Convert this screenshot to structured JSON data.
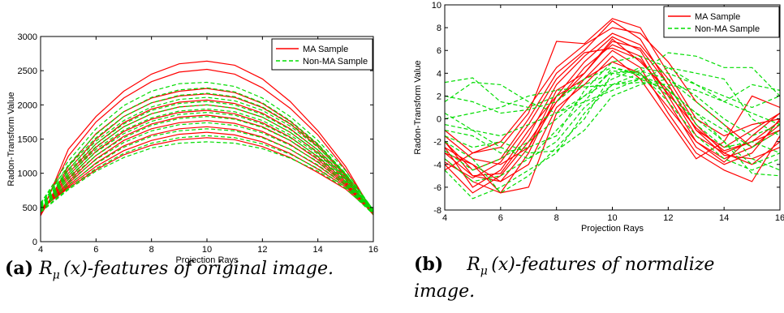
{
  "chart_data": [
    {
      "id": "a",
      "type": "line",
      "xlabel": "Projection Rays",
      "ylabel": "Radon-Transform Value",
      "xlim": [
        4,
        16
      ],
      "ylim": [
        0,
        3000
      ],
      "xticks": [
        4,
        6,
        8,
        10,
        12,
        14,
        16
      ],
      "yticks": [
        0,
        500,
        1000,
        1500,
        2000,
        2500,
        3000
      ],
      "legend": {
        "placement": "top-right",
        "entries": [
          {
            "label": "MA Sample",
            "color": "#ff0000",
            "dash": "solid"
          },
          {
            "label": "Non-MA Sample",
            "color": "#00dd00",
            "dash": "dashed"
          }
        ]
      },
      "x": [
        4,
        5,
        6,
        7,
        8,
        9,
        10,
        11,
        12,
        13,
        14,
        15,
        16
      ],
      "series": [
        {
          "group": "MA Sample",
          "values": [
            380,
            1350,
            1830,
            2200,
            2450,
            2600,
            2640,
            2580,
            2380,
            2050,
            1620,
            1100,
            420
          ]
        },
        {
          "group": "MA Sample",
          "values": [
            420,
            1250,
            1750,
            2100,
            2340,
            2480,
            2520,
            2450,
            2250,
            1950,
            1560,
            1050,
            430
          ]
        },
        {
          "group": "MA Sample",
          "values": [
            380,
            1100,
            1580,
            1900,
            2100,
            2200,
            2240,
            2180,
            2020,
            1760,
            1420,
            980,
            400
          ]
        },
        {
          "group": "MA Sample",
          "values": [
            400,
            1050,
            1500,
            1830,
            2030,
            2130,
            2160,
            2110,
            1960,
            1720,
            1390,
            960,
            410
          ]
        },
        {
          "group": "MA Sample",
          "values": [
            410,
            1000,
            1430,
            1740,
            1940,
            2040,
            2070,
            2020,
            1880,
            1650,
            1340,
            930,
            400
          ]
        },
        {
          "group": "MA Sample",
          "values": [
            420,
            960,
            1380,
            1680,
            1870,
            1970,
            2000,
            1950,
            1820,
            1600,
            1300,
            910,
            400
          ]
        },
        {
          "group": "MA Sample",
          "values": [
            430,
            920,
            1320,
            1610,
            1790,
            1890,
            1920,
            1870,
            1740,
            1530,
            1240,
            880,
            390
          ]
        },
        {
          "group": "MA Sample",
          "values": [
            440,
            880,
            1260,
            1540,
            1720,
            1820,
            1850,
            1800,
            1680,
            1480,
            1200,
            860,
            400
          ]
        },
        {
          "group": "MA Sample",
          "values": [
            450,
            850,
            1210,
            1480,
            1650,
            1740,
            1770,
            1730,
            1610,
            1420,
            1160,
            840,
            410
          ]
        },
        {
          "group": "MA Sample",
          "values": [
            460,
            820,
            1150,
            1400,
            1560,
            1650,
            1680,
            1640,
            1530,
            1350,
            1110,
            820,
            420
          ]
        },
        {
          "group": "MA Sample",
          "values": [
            470,
            800,
            1100,
            1330,
            1480,
            1570,
            1600,
            1560,
            1460,
            1290,
            1060,
            800,
            430
          ]
        },
        {
          "group": "MA Sample",
          "values": [
            480,
            780,
            1050,
            1270,
            1410,
            1490,
            1520,
            1490,
            1390,
            1230,
            1010,
            770,
            420
          ]
        },
        {
          "group": "Non-MA Sample",
          "values": [
            560,
            1180,
            1650,
            1990,
            2200,
            2310,
            2330,
            2270,
            2100,
            1830,
            1480,
            1040,
            460
          ]
        },
        {
          "group": "Non-MA Sample",
          "values": [
            520,
            1120,
            1570,
            1900,
            2110,
            2220,
            2250,
            2190,
            2030,
            1770,
            1430,
            1000,
            450
          ]
        },
        {
          "group": "Non-MA Sample",
          "values": [
            560,
            1100,
            1520,
            1830,
            2030,
            2140,
            2170,
            2120,
            1970,
            1730,
            1410,
            990,
            470
          ]
        },
        {
          "group": "Non-MA Sample",
          "values": [
            540,
            1060,
            1470,
            1770,
            1970,
            2080,
            2110,
            2060,
            1920,
            1690,
            1380,
            980,
            460
          ]
        },
        {
          "group": "Non-MA Sample",
          "values": [
            520,
            1030,
            1430,
            1720,
            1920,
            2020,
            2050,
            2000,
            1860,
            1640,
            1340,
            950,
            450
          ]
        },
        {
          "group": "Non-MA Sample",
          "values": [
            510,
            1000,
            1390,
            1680,
            1870,
            1970,
            2000,
            1950,
            1820,
            1600,
            1310,
            940,
            440
          ]
        },
        {
          "group": "Non-MA Sample",
          "values": [
            500,
            970,
            1350,
            1630,
            1810,
            1910,
            1940,
            1900,
            1770,
            1560,
            1280,
            920,
            440
          ]
        },
        {
          "group": "Non-MA Sample",
          "values": [
            490,
            940,
            1310,
            1580,
            1760,
            1860,
            1890,
            1850,
            1720,
            1520,
            1250,
            900,
            430
          ]
        },
        {
          "group": "Non-MA Sample",
          "values": [
            480,
            910,
            1260,
            1520,
            1700,
            1800,
            1830,
            1790,
            1670,
            1480,
            1220,
            880,
            430
          ]
        },
        {
          "group": "Non-MA Sample",
          "values": [
            470,
            870,
            1200,
            1450,
            1620,
            1710,
            1740,
            1700,
            1590,
            1410,
            1170,
            860,
            420
          ]
        },
        {
          "group": "Non-MA Sample",
          "values": [
            460,
            830,
            1140,
            1380,
            1540,
            1620,
            1650,
            1620,
            1520,
            1350,
            1120,
            830,
            420
          ]
        },
        {
          "group": "Non-MA Sample",
          "values": [
            440,
            780,
            1070,
            1290,
            1440,
            1520,
            1550,
            1520,
            1430,
            1280,
            1070,
            800,
            410
          ]
        },
        {
          "group": "Non-MA Sample",
          "values": [
            430,
            760,
            1030,
            1230,
            1370,
            1440,
            1460,
            1440,
            1360,
            1220,
            1030,
            780,
            400
          ]
        }
      ]
    },
    {
      "id": "b",
      "type": "line",
      "xlabel": "Projection Rays",
      "ylabel": "Radon-Transform Value",
      "xlim": [
        4,
        16
      ],
      "ylim": [
        -8,
        10
      ],
      "xticks": [
        4,
        6,
        8,
        10,
        12,
        14,
        16
      ],
      "yticks": [
        -8,
        -6,
        -4,
        -2,
        0,
        2,
        4,
        6,
        8,
        10
      ],
      "legend": {
        "placement": "top-right",
        "entries": [
          {
            "label": "MA Sample",
            "color": "#ff0000",
            "dash": "solid"
          },
          {
            "label": "Non-MA Sample",
            "color": "#00dd00",
            "dash": "dashed"
          }
        ]
      },
      "x": [
        4,
        5,
        6,
        7,
        8,
        9,
        10,
        11,
        12,
        13,
        14,
        15,
        16
      ],
      "series": [
        {
          "group": "MA Sample",
          "values": [
            -1.0,
            -3.0,
            -2.5,
            0.5,
            6.8,
            6.6,
            8.8,
            8.0,
            4.0,
            0.0,
            -1.5,
            -0.5,
            0.0
          ]
        },
        {
          "group": "MA Sample",
          "values": [
            -2.0,
            -4.5,
            -3.5,
            0.0,
            4.0,
            6.0,
            8.6,
            7.0,
            3.0,
            -1.0,
            -2.5,
            -1.0,
            0.5
          ]
        },
        {
          "group": "MA Sample",
          "values": [
            -3.0,
            -5.0,
            -4.8,
            -1.5,
            3.0,
            5.5,
            7.5,
            6.5,
            3.5,
            -0.5,
            -3.0,
            -2.0,
            -1.0
          ]
        },
        {
          "group": "MA Sample",
          "values": [
            -3.5,
            -5.5,
            -6.5,
            -3.0,
            2.0,
            5.0,
            7.2,
            6.0,
            2.0,
            -2.0,
            -3.5,
            -2.5,
            -0.5
          ]
        },
        {
          "group": "MA Sample",
          "values": [
            -4.0,
            -6.5,
            -5.0,
            -2.0,
            1.5,
            4.5,
            6.5,
            5.5,
            1.5,
            -2.5,
            -4.0,
            -3.0,
            0.0
          ]
        },
        {
          "group": "MA Sample",
          "values": [
            -2.5,
            -4.0,
            -6.5,
            -6.0,
            0.5,
            3.5,
            6.0,
            4.5,
            0.5,
            -3.0,
            -4.5,
            -5.5,
            -1.5
          ]
        },
        {
          "group": "MA Sample",
          "values": [
            -1.5,
            -3.5,
            -4.0,
            -2.5,
            2.5,
            4.0,
            7.0,
            5.0,
            2.5,
            -1.5,
            -3.0,
            -4.0,
            -2.0
          ]
        },
        {
          "group": "MA Sample",
          "values": [
            -2.0,
            -5.0,
            -5.5,
            -4.0,
            1.0,
            3.0,
            5.5,
            3.5,
            0.0,
            -3.5,
            -2.0,
            2.0,
            1.0
          ]
        },
        {
          "group": "MA Sample",
          "values": [
            -4.5,
            -3.0,
            -2.0,
            1.0,
            4.5,
            6.5,
            8.0,
            7.5,
            5.0,
            1.5,
            -0.5,
            -2.5,
            -1.0
          ]
        },
        {
          "group": "MA Sample",
          "values": [
            -3.0,
            -4.0,
            -5.5,
            -2.5,
            1.5,
            4.0,
            6.8,
            6.2,
            3.0,
            -1.0,
            -3.2,
            -3.5,
            -2.5
          ]
        },
        {
          "group": "MA Sample",
          "values": [
            -2.5,
            -6.0,
            -4.5,
            -1.0,
            2.0,
            3.5,
            5.0,
            4.0,
            1.0,
            -2.0,
            -3.8,
            -1.5,
            0.5
          ]
        },
        {
          "group": "MA Sample",
          "values": [
            -3.8,
            -5.2,
            -3.8,
            -0.5,
            3.5,
            5.8,
            6.2,
            5.2,
            2.2,
            -0.8,
            -2.8,
            -2.0,
            -0.2
          ]
        },
        {
          "group": "Non-MA Sample",
          "values": [
            3.2,
            3.6,
            1.5,
            1.0,
            2.0,
            3.0,
            4.0,
            3.5,
            2.5,
            0.5,
            -1.0,
            -2.5,
            -1.0
          ]
        },
        {
          "group": "Non-MA Sample",
          "values": [
            1.5,
            3.2,
            3.0,
            1.5,
            0.5,
            2.0,
            3.5,
            4.5,
            4.0,
            3.0,
            2.0,
            1.0,
            2.0
          ]
        },
        {
          "group": "Non-MA Sample",
          "values": [
            0.5,
            -1.0,
            -2.5,
            -3.5,
            -2.0,
            1.0,
            3.0,
            4.0,
            5.8,
            5.5,
            4.5,
            4.5,
            2.0
          ]
        },
        {
          "group": "Non-MA Sample",
          "values": [
            -1.0,
            -1.5,
            -3.0,
            -2.5,
            -1.5,
            2.5,
            5.0,
            5.5,
            4.5,
            3.0,
            1.5,
            3.0,
            2.5
          ]
        },
        {
          "group": "Non-MA Sample",
          "values": [
            -2.0,
            -3.5,
            -6.5,
            -5.0,
            -2.5,
            0.0,
            4.0,
            4.2,
            3.5,
            2.0,
            0.0,
            -1.5,
            -0.5
          ]
        },
        {
          "group": "Non-MA Sample",
          "values": [
            -4.5,
            -7.0,
            -6.0,
            -4.5,
            -3.0,
            0.5,
            3.0,
            3.5,
            2.5,
            0.5,
            -2.0,
            -4.0,
            -3.0
          ]
        },
        {
          "group": "Non-MA Sample",
          "values": [
            -1.5,
            -2.5,
            -2.0,
            -3.0,
            -2.8,
            -1.0,
            2.0,
            3.0,
            3.5,
            1.5,
            -0.5,
            -3.5,
            -4.5
          ]
        },
        {
          "group": "Non-MA Sample",
          "values": [
            -0.5,
            -1.0,
            -1.5,
            -0.5,
            0.5,
            1.5,
            2.5,
            3.5,
            4.5,
            4.0,
            3.5,
            0.0,
            -1.5
          ]
        },
        {
          "group": "Non-MA Sample",
          "values": [
            0.0,
            0.5,
            1.0,
            2.0,
            2.5,
            2.8,
            3.0,
            3.2,
            3.0,
            2.5,
            1.5,
            0.5,
            -0.5
          ]
        },
        {
          "group": "Non-MA Sample",
          "values": [
            -2.8,
            -4.5,
            -3.5,
            -2.0,
            0.0,
            2.0,
            4.2,
            4.0,
            1.5,
            -1.5,
            -3.5,
            -4.5,
            -3.5
          ]
        },
        {
          "group": "Non-MA Sample",
          "values": [
            2.0,
            1.5,
            0.5,
            0.8,
            1.5,
            3.5,
            4.5,
            4.0,
            2.0,
            0.0,
            -2.0,
            -4.8,
            -5.0
          ]
        },
        {
          "group": "Non-MA Sample",
          "values": [
            -3.5,
            -5.5,
            -5.0,
            -3.5,
            -1.0,
            1.5,
            4.5,
            3.8,
            2.8,
            -0.5,
            -2.5,
            -2.0,
            -3.0
          ]
        }
      ]
    }
  ],
  "captions": [
    {
      "label": "(a)",
      "math_main": "R",
      "math_sub": "μ",
      "math_arg": "(x)",
      "text": "-features of original image."
    },
    {
      "label": "(b)",
      "math_main": "R",
      "math_sub": "μ",
      "math_arg": "(x)",
      "text_line1": "-features of normalize",
      "text_line2": "image."
    }
  ]
}
